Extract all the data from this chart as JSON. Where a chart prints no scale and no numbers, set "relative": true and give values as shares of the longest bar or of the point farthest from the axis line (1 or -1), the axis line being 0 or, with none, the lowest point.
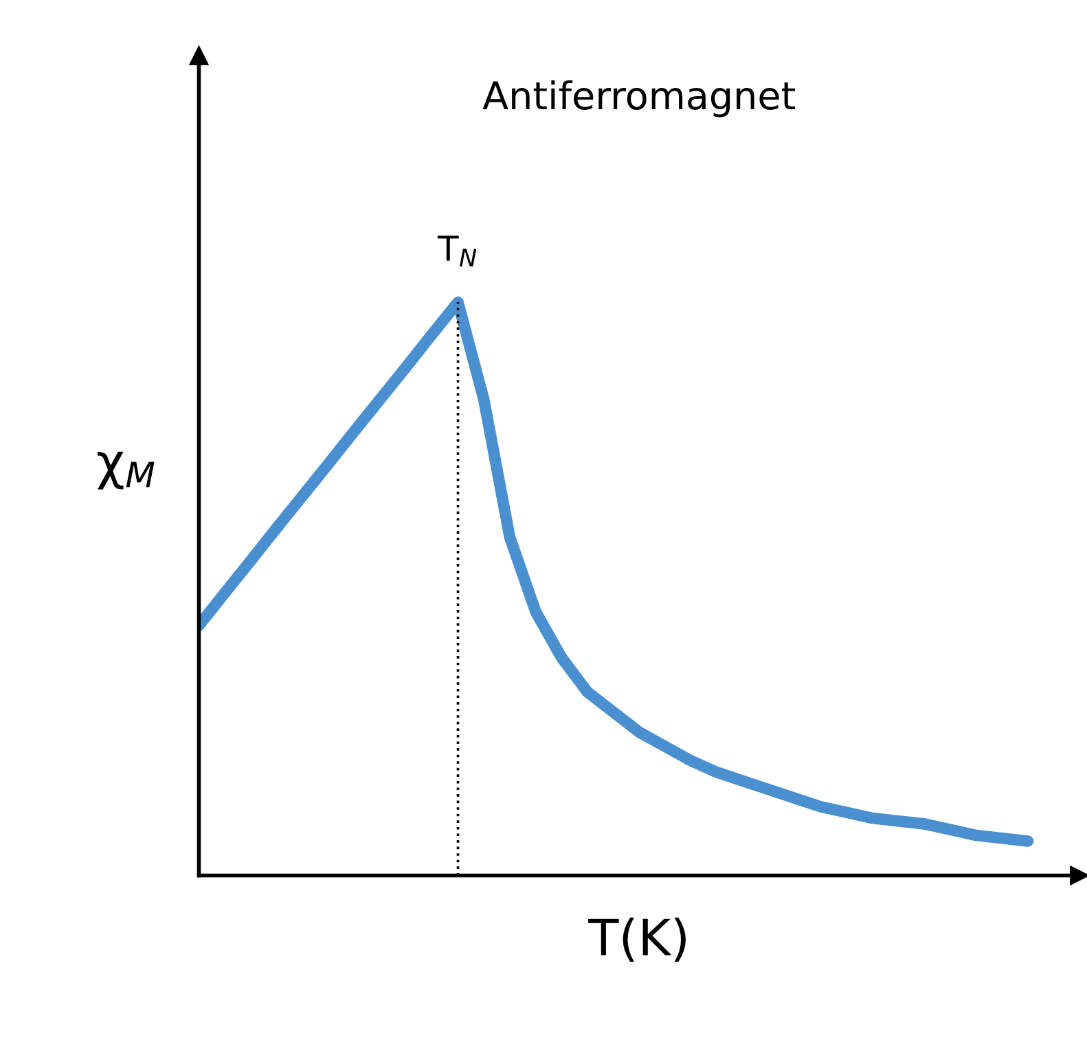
{
  "chart_data": {
    "type": "line",
    "title": "Antiferromagnet",
    "xlabel": "T(K)",
    "ylabel": "χ$_{M}$",
    "relative": true,
    "categories": [
      null,
      null,
      null,
      null,
      null,
      null,
      null,
      null,
      null,
      null,
      null,
      null,
      null,
      null,
      null,
      null,
      null,
      null,
      null,
      null,
      null,
      null,
      null,
      null,
      null,
      null,
      null,
      null,
      null,
      null,
      null,
      null,
      null
    ],
    "series": [
      {
        "color": "#4a90d0",
        "values": [
          0.436,
          0.493,
          0.549,
          0.606,
          0.662,
          0.718,
          0.775,
          0.831,
          0.887,
          0.944,
          1.0,
          0.83,
          0.59,
          0.46,
          0.38,
          0.32,
          0.285,
          0.25,
          0.225,
          0.2,
          0.18,
          0.165,
          0.15,
          0.135,
          0.12,
          0.11,
          0.1,
          0.095,
          0.09,
          0.08,
          0.07,
          0.065,
          0.06
        ]
      }
    ],
    "annotations": [
      "T$_{N}$"
    ],
    "marker": "none",
    "line_style": "solid",
    "legend": false,
    "tick_labels": false
  }
}
